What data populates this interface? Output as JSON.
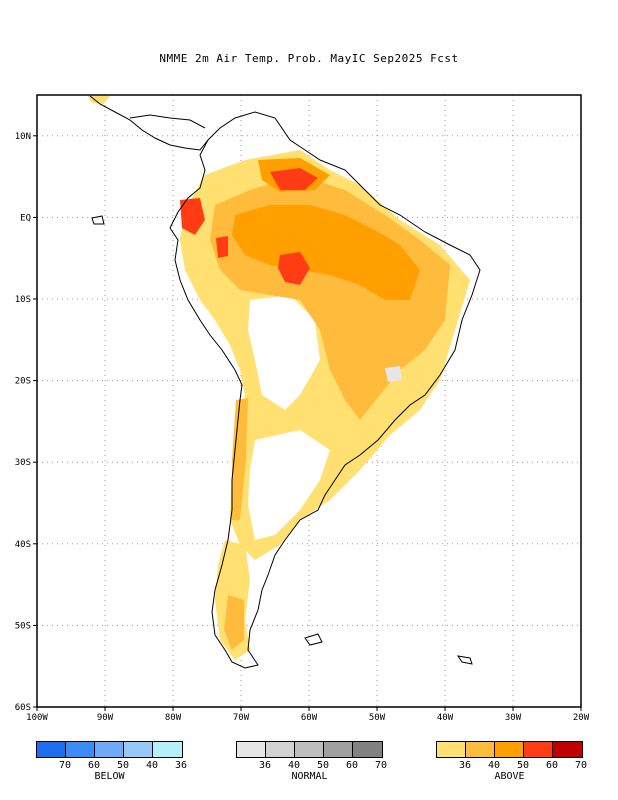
{
  "title": "NMME 2m Air Temp. Prob. MayIC  Sep2025 Fcst",
  "map": {
    "lon_range": [
      -100,
      -20
    ],
    "lat_range": [
      -60,
      15
    ],
    "lat_ticks": [
      {
        "lat": 10,
        "label": "10N"
      },
      {
        "lat": 0,
        "label": "EQ"
      },
      {
        "lat": -10,
        "label": "10S"
      },
      {
        "lat": -20,
        "label": "20S"
      },
      {
        "lat": -30,
        "label": "30S"
      },
      {
        "lat": -40,
        "label": "40S"
      },
      {
        "lat": -50,
        "label": "50S"
      },
      {
        "lat": -60,
        "label": "60S"
      }
    ],
    "lon_ticks": [
      {
        "lon": -100,
        "label": "100W"
      },
      {
        "lon": -90,
        "label": "90W"
      },
      {
        "lon": -80,
        "label": "80W"
      },
      {
        "lon": -70,
        "label": "70W"
      },
      {
        "lon": -60,
        "label": "60W"
      },
      {
        "lon": -50,
        "label": "50W"
      },
      {
        "lon": -40,
        "label": "40W"
      },
      {
        "lon": -30,
        "label": "30W"
      },
      {
        "lon": -20,
        "label": "20W"
      }
    ],
    "grid": "dotted",
    "coastline_color": "#000000"
  },
  "legend": {
    "below": {
      "name": "BELOW",
      "colors": [
        "#1e6ef0",
        "#3c8cf5",
        "#6eaaf8",
        "#96c8f8",
        "#b4f0fa"
      ],
      "labels": [
        "70",
        "60",
        "50",
        "40",
        "36"
      ]
    },
    "normal": {
      "name": "NORMAL",
      "colors": [
        "#e6e6e6",
        "#d2d2d2",
        "#bebebe",
        "#a0a0a0",
        "#828282"
      ],
      "labels": [
        "36",
        "40",
        "50",
        "60",
        "70"
      ]
    },
    "above": {
      "name": "ABOVE",
      "colors": [
        "#ffe070",
        "#ffbb3c",
        "#ffa000",
        "#ff3c14",
        "#c00000"
      ],
      "labels": [
        "36",
        "40",
        "50",
        "60",
        "70"
      ]
    }
  }
}
